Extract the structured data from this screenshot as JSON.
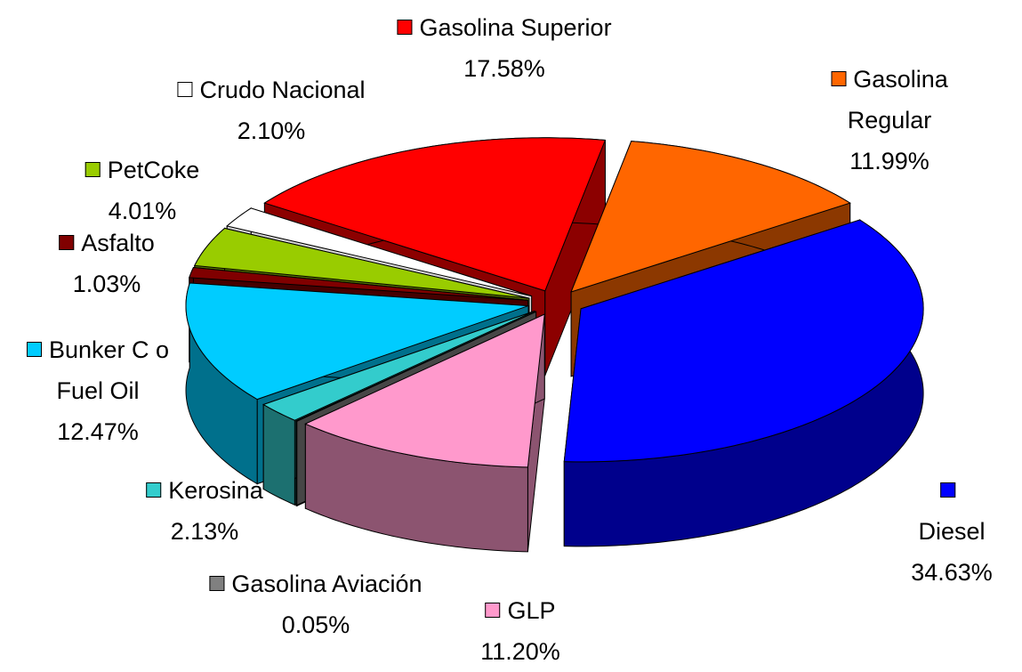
{
  "chart_data": {
    "type": "pie3d",
    "categories": [
      "Gasolina Superior",
      "Gasolina Regular",
      "Diesel",
      "GLP",
      "Gasolina Aviación",
      "Kerosina",
      "Bunker C o Fuel Oil",
      "Asfalto",
      "PetCoke",
      "Crudo Nacional"
    ],
    "values": [
      17.58,
      11.99,
      34.63,
      11.2,
      0.05,
      2.13,
      12.47,
      1.03,
      4.01,
      2.1
    ],
    "value_labels": [
      "17.58%",
      "11.99%",
      "34.63%",
      "11.20%",
      "0.05%",
      "2.13%",
      "12.47%",
      "1.03%",
      "4.01%",
      "2.10%"
    ],
    "colors": [
      "#ff0000",
      "#ff6600",
      "#0000ff",
      "#ff99cc",
      "#808080",
      "#33cccc",
      "#00ccff",
      "#800000",
      "#99cc00",
      "#ffffff"
    ]
  }
}
